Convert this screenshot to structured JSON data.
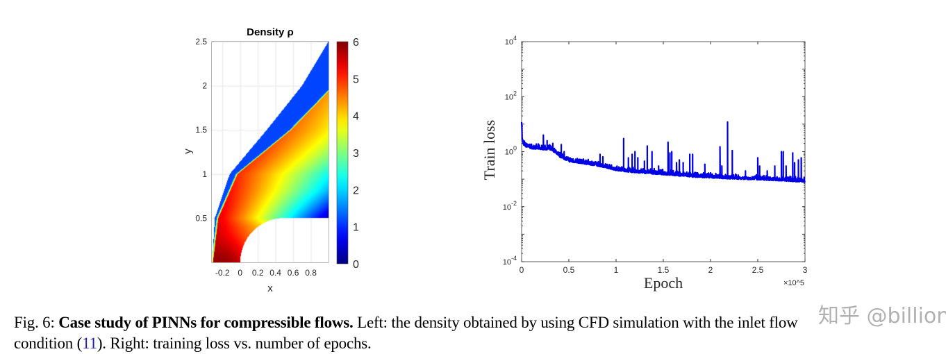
{
  "chart_data": [
    {
      "type": "heatmap",
      "title": "Density ρ",
      "xlabel": "x",
      "ylabel": "y",
      "xlim": [
        -0.32,
        1.0
      ],
      "ylim": [
        0,
        2.5
      ],
      "xticks": [
        "-0.2",
        "0",
        "0.2",
        "0.4",
        "0.6",
        "0.8"
      ],
      "xtick_values": [
        -0.2,
        0,
        0.2,
        0.4,
        0.6,
        0.8
      ],
      "yticks": [
        "0.5",
        "1",
        "1.5",
        "2",
        "2.5"
      ],
      "ytick_values": [
        0.5,
        1,
        1.5,
        2,
        2.5
      ],
      "colorbar": {
        "colormap": "jet",
        "range": [
          0,
          6
        ],
        "ticks": [
          "0",
          "1",
          "2",
          "3",
          "4",
          "5",
          "6"
        ]
      },
      "grid": true
    },
    {
      "type": "line",
      "xlabel": "Epoch",
      "x_multiplier": "×10^5",
      "ylabel": "Train loss",
      "yscale": "log",
      "xlim": [
        0,
        3
      ],
      "ylim": [
        0.0001,
        10000
      ],
      "xticks": [
        "0",
        "0.5",
        "1",
        "1.5",
        "2",
        "2.5",
        "3"
      ],
      "xtick_values": [
        0,
        0.5,
        1,
        1.5,
        2,
        2.5,
        3
      ],
      "yticks": [
        {
          "base": "10",
          "exp": "4",
          "value": 10000
        },
        {
          "base": "10",
          "exp": "2",
          "value": 100
        },
        {
          "base": "10",
          "exp": "0",
          "value": 1
        },
        {
          "base": "10",
          "exp": "-2",
          "value": 0.01
        },
        {
          "base": "10",
          "exp": "-4",
          "value": 0.0001
        }
      ],
      "color": "#0000e6",
      "series": [
        {
          "x": [
            0,
            0.005,
            0.02,
            0.05,
            0.1,
            0.2,
            0.3,
            0.35,
            0.4,
            0.5,
            0.6,
            0.7,
            0.8,
            0.9,
            1.0,
            1.2,
            1.5,
            1.8,
            2.0,
            2.2,
            2.5,
            2.8,
            3.0
          ],
          "y": [
            14,
            3,
            2.0,
            1.7,
            1.5,
            1.4,
            1.35,
            1.1,
            0.75,
            0.5,
            0.45,
            0.4,
            0.35,
            0.3,
            0.24,
            0.2,
            0.17,
            0.14,
            0.13,
            0.12,
            0.11,
            0.1,
            0.09
          ],
          "spikes": [
            [
              0.23,
              4
            ],
            [
              0.27,
              2.5
            ],
            [
              0.33,
              2.0
            ],
            [
              0.42,
              1.8
            ],
            [
              0.45,
              1.0
            ],
            [
              0.83,
              0.8
            ],
            [
              0.86,
              0.65
            ],
            [
              1.08,
              3
            ],
            [
              1.13,
              0.6
            ],
            [
              1.17,
              0.8
            ],
            [
              1.2,
              1
            ],
            [
              1.23,
              0.6
            ],
            [
              1.3,
              0.45
            ],
            [
              1.33,
              1.6
            ],
            [
              1.38,
              1
            ],
            [
              1.45,
              0.3
            ],
            [
              1.55,
              2.2
            ],
            [
              1.57,
              0.9
            ],
            [
              1.59,
              1
            ],
            [
              1.64,
              0.4
            ],
            [
              1.67,
              0.5
            ],
            [
              1.71,
              0.4
            ],
            [
              1.78,
              0.8
            ],
            [
              1.81,
              0.8
            ],
            [
              1.94,
              0.35
            ],
            [
              2.1,
              1.5
            ],
            [
              2.12,
              0.3
            ],
            [
              2.18,
              12
            ],
            [
              2.23,
              1.1
            ],
            [
              2.37,
              0.2
            ],
            [
              2.5,
              0.6
            ],
            [
              2.52,
              0.3
            ],
            [
              2.6,
              0.2
            ],
            [
              2.68,
              0.3
            ],
            [
              2.75,
              1
            ],
            [
              2.77,
              1
            ],
            [
              2.8,
              0.3
            ],
            [
              2.87,
              0.9
            ],
            [
              2.89,
              0.4
            ],
            [
              2.93,
              0.5
            ],
            [
              2.96,
              0.6
            ]
          ]
        }
      ]
    }
  ],
  "caption": {
    "fig_label": "Fig. 6:",
    "bold_title": "Case study of PINNs for compressible flows.",
    "text_line1": "Left: the density obtained by using CFD simulation with the inlet flow",
    "text_line2_pre": "condition (",
    "ref": "11",
    "text_line2_post": "). Right: training loss vs. number of epochs."
  },
  "watermark": "知乎 @billion"
}
